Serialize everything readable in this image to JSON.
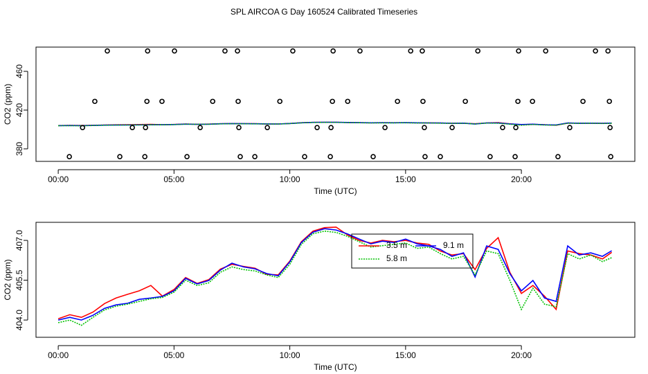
{
  "chart_data": [
    {
      "type": "scatter",
      "title": "SPL AIRCOA G  Day 160524  Calibrated Timeseries",
      "xlabel": "Time (UTC)",
      "ylabel": "CO2 (ppm)",
      "color": "#000000",
      "marker": "open-circle",
      "x": [
        2.12,
        3.86,
        5.02,
        7.2,
        7.74,
        10.13,
        11.87,
        13.03,
        15.22,
        15.72,
        18.12,
        19.88,
        21.05,
        23.2,
        23.74,
        1.58,
        3.83,
        4.48,
        6.67,
        7.77,
        9.57,
        11.84,
        12.5,
        14.65,
        15.75,
        17.58,
        19.85,
        20.48,
        22.66,
        23.8,
        1.05,
        3.2,
        3.77,
        6.13,
        7.8,
        9.03,
        11.18,
        11.78,
        14.11,
        15.81,
        17.01,
        19.19,
        19.76,
        22.09,
        23.83,
        0.48,
        2.66,
        3.74,
        5.56,
        7.86,
        8.49,
        10.64,
        11.75,
        13.6,
        15.84,
        16.5,
        18.65,
        19.73,
        21.58,
        23.86
      ],
      "values": [
        481,
        481,
        481,
        481,
        481,
        481,
        481,
        481,
        481,
        481,
        481,
        481,
        481,
        481,
        481,
        429,
        429,
        429,
        429,
        429,
        429,
        429,
        429,
        429,
        429,
        429,
        429,
        429,
        429,
        429,
        402,
        402,
        402,
        402,
        402,
        402,
        402,
        402,
        402,
        402,
        402,
        402,
        402,
        402,
        402,
        372,
        372,
        372,
        372,
        372,
        372,
        372,
        372,
        372,
        372,
        372,
        372,
        372,
        372,
        372
      ],
      "xlim": [
        -0.96,
        24.9
      ],
      "ylim": [
        367.1,
        485
      ],
      "xticks": [
        {
          "value": 0,
          "label": "00:00"
        },
        {
          "value": 5,
          "label": "05:00"
        },
        {
          "value": 10,
          "label": "10:00"
        },
        {
          "value": 15,
          "label": "15:00"
        },
        {
          "value": 20,
          "label": "20:00"
        }
      ],
      "yticks": [
        380,
        420,
        460
      ]
    },
    {
      "type": "line",
      "xlabel": "Time (UTC)",
      "ylabel": "CO2 (ppm)",
      "legend": "top",
      "x": [
        0,
        0.5,
        1,
        1.5,
        2,
        2.5,
        3,
        3.5,
        4,
        4.5,
        5,
        5.5,
        6,
        6.5,
        7,
        7.5,
        8,
        8.5,
        9,
        9.5,
        10,
        10.5,
        11,
        11.5,
        12,
        12.5,
        13,
        13.5,
        14,
        14.5,
        15,
        15.5,
        16,
        16.5,
        17,
        17.5,
        18,
        18.5,
        19,
        19.5,
        20,
        20.5,
        21,
        21.5,
        22,
        22.5,
        23,
        23.5,
        23.9
      ],
      "series": [
        {
          "name": "3.5 m",
          "color": "#ff0000",
          "values": [
            404.05,
            404.2,
            404.1,
            404.3,
            404.62,
            404.83,
            404.97,
            405.1,
            405.3,
            404.9,
            405.15,
            405.6,
            405.38,
            405.52,
            405.92,
            406.1,
            406.02,
            405.95,
            405.72,
            405.7,
            406.22,
            406.95,
            407.35,
            407.48,
            407.5,
            407.2,
            407.0,
            406.9,
            407.0,
            406.95,
            407.0,
            406.9,
            406.85,
            406.6,
            406.45,
            406.5,
            405.9,
            406.7,
            407.1,
            405.8,
            405.0,
            405.3,
            404.9,
            404.4,
            406.6,
            406.5,
            406.45,
            406.3,
            406.55
          ]
        },
        {
          "name": "9.1 m",
          "color": "#0000ff",
          "values": [
            404.0,
            404.1,
            404.0,
            404.18,
            404.44,
            404.57,
            404.63,
            404.78,
            404.83,
            404.89,
            405.1,
            405.57,
            405.36,
            405.49,
            405.88,
            406.14,
            406.0,
            405.93,
            405.75,
            405.67,
            406.19,
            406.92,
            407.31,
            407.44,
            407.39,
            407.24,
            407.05,
            406.87,
            406.97,
            406.92,
            407.05,
            406.87,
            406.79,
            406.66,
            406.4,
            406.53,
            405.62,
            406.79,
            406.66,
            405.75,
            405.1,
            405.49,
            404.83,
            404.7,
            406.79,
            406.45,
            406.53,
            406.4,
            406.61
          ]
        },
        {
          "name": "5.8 m",
          "color": "#00c000",
          "dashed": true,
          "values": [
            403.9,
            404.0,
            403.8,
            404.1,
            404.38,
            404.52,
            404.6,
            404.7,
            404.8,
            404.85,
            405.05,
            405.5,
            405.3,
            405.4,
            405.8,
            406.0,
            405.9,
            405.85,
            405.7,
            405.6,
            406.1,
            406.85,
            407.25,
            407.35,
            407.3,
            407.15,
            406.95,
            406.75,
            406.8,
            406.85,
            406.9,
            406.7,
            406.75,
            406.5,
            406.3,
            406.4,
            405.7,
            406.6,
            406.5,
            405.5,
            404.4,
            405.2,
            404.6,
            404.5,
            406.5,
            406.3,
            406.45,
            406.2,
            406.35
          ]
        }
      ],
      "xlim": [
        -0.96,
        24.9
      ],
      "ylim": [
        403.35,
        407.68
      ],
      "xticks": [
        {
          "value": 0,
          "label": "00:00"
        },
        {
          "value": 5,
          "label": "05:00"
        },
        {
          "value": 10,
          "label": "10:00"
        },
        {
          "value": 15,
          "label": "15:00"
        },
        {
          "value": 20,
          "label": "20:00"
        }
      ],
      "yticks": [
        {
          "value": 404,
          "label": "404.0"
        },
        405.5,
        {
          "value": 407,
          "label": "407.0"
        }
      ]
    }
  ]
}
